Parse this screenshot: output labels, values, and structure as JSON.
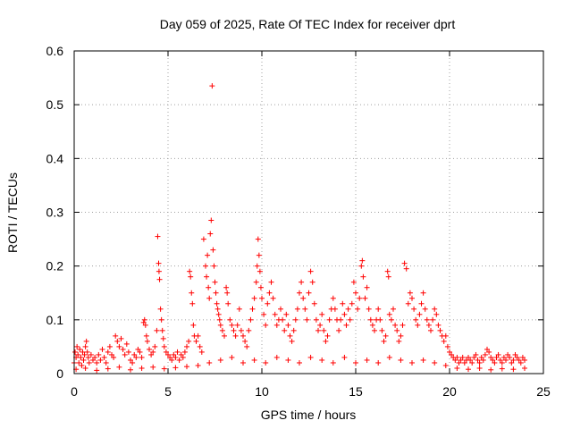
{
  "chart_data": {
    "type": "scatter",
    "title": "Day 059 of 2025, Rate Of TEC Index for receiver dprt",
    "xlabel": "GPS time / hours",
    "ylabel": "ROTI / TECUs",
    "xlim": [
      0,
      25
    ],
    "ylim": [
      0,
      0.6
    ],
    "xticks": [
      "0",
      "5",
      "10",
      "15",
      "20",
      "25"
    ],
    "yticks": [
      "0",
      "0.1",
      "0.2",
      "0.3",
      "0.4",
      "0.5",
      "0.6"
    ],
    "grid": true,
    "marker": "+",
    "color": "#ff0000",
    "series": [
      {
        "points": [
          [
            0.0,
            0.02
          ],
          [
            0.05,
            0.04
          ],
          [
            0.1,
            0.03
          ],
          [
            0.15,
            0.05
          ],
          [
            0.2,
            0.035
          ],
          [
            0.25,
            0.02
          ],
          [
            0.3,
            0.045
          ],
          [
            0.35,
            0.03
          ],
          [
            0.4,
            0.015
          ],
          [
            0.45,
            0.04
          ],
          [
            0.5,
            0.025
          ],
          [
            0.55,
            0.035
          ],
          [
            0.6,
            0.05
          ],
          [
            0.65,
            0.06
          ],
          [
            0.7,
            0.04
          ],
          [
            0.75,
            0.03
          ],
          [
            0.8,
            0.02
          ],
          [
            0.9,
            0.035
          ],
          [
            1.0,
            0.025
          ],
          [
            1.1,
            0.03
          ],
          [
            1.2,
            0.02
          ],
          [
            1.3,
            0.035
          ],
          [
            1.4,
            0.025
          ],
          [
            1.5,
            0.045
          ],
          [
            1.6,
            0.03
          ],
          [
            1.7,
            0.02
          ],
          [
            1.8,
            0.04
          ],
          [
            1.9,
            0.05
          ],
          [
            2.0,
            0.035
          ],
          [
            2.1,
            0.03
          ],
          [
            2.2,
            0.07
          ],
          [
            2.3,
            0.06
          ],
          [
            2.4,
            0.05
          ],
          [
            2.5,
            0.065
          ],
          [
            2.6,
            0.045
          ],
          [
            2.7,
            0.035
          ],
          [
            2.8,
            0.055
          ],
          [
            2.9,
            0.04
          ],
          [
            3.0,
            0.025
          ],
          [
            3.1,
            0.02
          ],
          [
            3.2,
            0.035
          ],
          [
            3.3,
            0.03
          ],
          [
            3.4,
            0.045
          ],
          [
            3.5,
            0.04
          ],
          [
            3.6,
            0.03
          ],
          [
            3.7,
            0.095
          ],
          [
            3.75,
            0.1
          ],
          [
            3.8,
            0.09
          ],
          [
            3.85,
            0.07
          ],
          [
            3.9,
            0.06
          ],
          [
            4.0,
            0.045
          ],
          [
            4.1,
            0.035
          ],
          [
            4.2,
            0.04
          ],
          [
            4.3,
            0.05
          ],
          [
            4.4,
            0.08
          ],
          [
            4.45,
            0.255
          ],
          [
            4.5,
            0.205
          ],
          [
            4.52,
            0.19
          ],
          [
            4.55,
            0.175
          ],
          [
            4.6,
            0.12
          ],
          [
            4.65,
            0.1
          ],
          [
            4.7,
            0.08
          ],
          [
            4.75,
            0.065
          ],
          [
            4.8,
            0.05
          ],
          [
            4.9,
            0.04
          ],
          [
            5.0,
            0.035
          ],
          [
            5.1,
            0.03
          ],
          [
            5.2,
            0.025
          ],
          [
            5.3,
            0.035
          ],
          [
            5.4,
            0.03
          ],
          [
            5.5,
            0.04
          ],
          [
            5.6,
            0.025
          ],
          [
            5.7,
            0.035
          ],
          [
            5.8,
            0.03
          ],
          [
            5.9,
            0.04
          ],
          [
            6.0,
            0.05
          ],
          [
            6.1,
            0.06
          ],
          [
            6.15,
            0.19
          ],
          [
            6.2,
            0.18
          ],
          [
            6.25,
            0.15
          ],
          [
            6.3,
            0.13
          ],
          [
            6.35,
            0.09
          ],
          [
            6.4,
            0.07
          ],
          [
            6.5,
            0.06
          ],
          [
            6.6,
            0.07
          ],
          [
            6.7,
            0.05
          ],
          [
            6.8,
            0.04
          ],
          [
            6.9,
            0.25
          ],
          [
            7.0,
            0.2
          ],
          [
            7.05,
            0.18
          ],
          [
            7.1,
            0.22
          ],
          [
            7.15,
            0.16
          ],
          [
            7.2,
            0.14
          ],
          [
            7.25,
            0.26
          ],
          [
            7.3,
            0.285
          ],
          [
            7.35,
            0.535
          ],
          [
            7.4,
            0.23
          ],
          [
            7.45,
            0.2
          ],
          [
            7.5,
            0.17
          ],
          [
            7.55,
            0.15
          ],
          [
            7.6,
            0.13
          ],
          [
            7.65,
            0.12
          ],
          [
            7.7,
            0.11
          ],
          [
            7.75,
            0.1
          ],
          [
            7.8,
            0.09
          ],
          [
            7.9,
            0.08
          ],
          [
            8.0,
            0.07
          ],
          [
            8.1,
            0.16
          ],
          [
            8.15,
            0.15
          ],
          [
            8.2,
            0.13
          ],
          [
            8.3,
            0.1
          ],
          [
            8.4,
            0.09
          ],
          [
            8.5,
            0.08
          ],
          [
            8.6,
            0.07
          ],
          [
            8.7,
            0.09
          ],
          [
            8.8,
            0.12
          ],
          [
            8.9,
            0.08
          ],
          [
            9.0,
            0.07
          ],
          [
            9.1,
            0.06
          ],
          [
            9.2,
            0.05
          ],
          [
            9.3,
            0.08
          ],
          [
            9.4,
            0.1
          ],
          [
            9.5,
            0.12
          ],
          [
            9.6,
            0.14
          ],
          [
            9.7,
            0.17
          ],
          [
            9.75,
            0.2
          ],
          [
            9.8,
            0.25
          ],
          [
            9.85,
            0.22
          ],
          [
            9.9,
            0.19
          ],
          [
            9.95,
            0.16
          ],
          [
            10.0,
            0.14
          ],
          [
            10.1,
            0.11
          ],
          [
            10.2,
            0.09
          ],
          [
            10.3,
            0.13
          ],
          [
            10.4,
            0.15
          ],
          [
            10.5,
            0.17
          ],
          [
            10.6,
            0.14
          ],
          [
            10.7,
            0.11
          ],
          [
            10.8,
            0.09
          ],
          [
            10.9,
            0.1
          ],
          [
            11.0,
            0.12
          ],
          [
            11.1,
            0.1
          ],
          [
            11.2,
            0.08
          ],
          [
            11.3,
            0.11
          ],
          [
            11.4,
            0.09
          ],
          [
            11.5,
            0.07
          ],
          [
            11.6,
            0.06
          ],
          [
            11.7,
            0.08
          ],
          [
            11.8,
            0.1
          ],
          [
            11.9,
            0.12
          ],
          [
            12.0,
            0.15
          ],
          [
            12.1,
            0.17
          ],
          [
            12.2,
            0.14
          ],
          [
            12.3,
            0.12
          ],
          [
            12.4,
            0.1
          ],
          [
            12.5,
            0.15
          ],
          [
            12.6,
            0.19
          ],
          [
            12.7,
            0.17
          ],
          [
            12.8,
            0.13
          ],
          [
            12.9,
            0.1
          ],
          [
            13.0,
            0.08
          ],
          [
            13.1,
            0.09
          ],
          [
            13.2,
            0.11
          ],
          [
            13.3,
            0.08
          ],
          [
            13.4,
            0.06
          ],
          [
            13.5,
            0.07
          ],
          [
            13.6,
            0.1
          ],
          [
            13.7,
            0.12
          ],
          [
            13.8,
            0.14
          ],
          [
            13.9,
            0.12
          ],
          [
            14.0,
            0.1
          ],
          [
            14.1,
            0.08
          ],
          [
            14.2,
            0.1
          ],
          [
            14.3,
            0.13
          ],
          [
            14.4,
            0.11
          ],
          [
            14.5,
            0.09
          ],
          [
            14.6,
            0.12
          ],
          [
            14.7,
            0.1
          ],
          [
            14.8,
            0.13
          ],
          [
            14.9,
            0.17
          ],
          [
            15.0,
            0.15
          ],
          [
            15.1,
            0.12
          ],
          [
            15.2,
            0.14
          ],
          [
            15.3,
            0.2
          ],
          [
            15.35,
            0.21
          ],
          [
            15.4,
            0.18
          ],
          [
            15.5,
            0.14
          ],
          [
            15.6,
            0.16
          ],
          [
            15.7,
            0.12
          ],
          [
            15.8,
            0.1
          ],
          [
            15.9,
            0.09
          ],
          [
            16.0,
            0.08
          ],
          [
            16.1,
            0.1
          ],
          [
            16.2,
            0.12
          ],
          [
            16.3,
            0.1
          ],
          [
            16.4,
            0.08
          ],
          [
            16.5,
            0.06
          ],
          [
            16.6,
            0.07
          ],
          [
            16.7,
            0.19
          ],
          [
            16.75,
            0.18
          ],
          [
            16.8,
            0.11
          ],
          [
            16.9,
            0.1
          ],
          [
            17.0,
            0.12
          ],
          [
            17.1,
            0.09
          ],
          [
            17.2,
            0.08
          ],
          [
            17.3,
            0.06
          ],
          [
            17.4,
            0.07
          ],
          [
            17.5,
            0.09
          ],
          [
            17.6,
            0.205
          ],
          [
            17.7,
            0.195
          ],
          [
            17.8,
            0.13
          ],
          [
            17.9,
            0.15
          ],
          [
            18.0,
            0.14
          ],
          [
            18.1,
            0.12
          ],
          [
            18.2,
            0.1
          ],
          [
            18.3,
            0.09
          ],
          [
            18.4,
            0.11
          ],
          [
            18.5,
            0.13
          ],
          [
            18.6,
            0.15
          ],
          [
            18.7,
            0.12
          ],
          [
            18.8,
            0.1
          ],
          [
            18.9,
            0.09
          ],
          [
            19.0,
            0.08
          ],
          [
            19.1,
            0.1
          ],
          [
            19.2,
            0.12
          ],
          [
            19.3,
            0.11
          ],
          [
            19.4,
            0.09
          ],
          [
            19.5,
            0.08
          ],
          [
            19.6,
            0.07
          ],
          [
            19.7,
            0.06
          ],
          [
            19.8,
            0.07
          ],
          [
            19.9,
            0.05
          ],
          [
            20.0,
            0.04
          ],
          [
            20.1,
            0.035
          ],
          [
            20.2,
            0.03
          ],
          [
            20.3,
            0.025
          ],
          [
            20.4,
            0.03
          ],
          [
            20.5,
            0.02
          ],
          [
            20.6,
            0.025
          ],
          [
            20.7,
            0.03
          ],
          [
            20.8,
            0.02
          ],
          [
            20.9,
            0.025
          ],
          [
            21.0,
            0.03
          ],
          [
            21.1,
            0.025
          ],
          [
            21.2,
            0.02
          ],
          [
            21.3,
            0.03
          ],
          [
            21.4,
            0.035
          ],
          [
            21.5,
            0.025
          ],
          [
            21.6,
            0.02
          ],
          [
            21.7,
            0.03
          ],
          [
            21.8,
            0.025
          ],
          [
            21.9,
            0.035
          ],
          [
            22.0,
            0.045
          ],
          [
            22.1,
            0.04
          ],
          [
            22.2,
            0.03
          ],
          [
            22.3,
            0.025
          ],
          [
            22.4,
            0.02
          ],
          [
            22.5,
            0.03
          ],
          [
            22.6,
            0.035
          ],
          [
            22.7,
            0.025
          ],
          [
            22.8,
            0.02
          ],
          [
            22.9,
            0.03
          ],
          [
            23.0,
            0.025
          ],
          [
            23.1,
            0.035
          ],
          [
            23.2,
            0.03
          ],
          [
            23.3,
            0.02
          ],
          [
            23.4,
            0.025
          ],
          [
            23.5,
            0.035
          ],
          [
            23.6,
            0.03
          ],
          [
            23.7,
            0.025
          ],
          [
            23.8,
            0.02
          ],
          [
            23.9,
            0.03
          ],
          [
            24.0,
            0.025
          ],
          [
            0.1,
            0.008
          ],
          [
            0.6,
            0.01
          ],
          [
            1.2,
            0.006
          ],
          [
            1.8,
            0.009
          ],
          [
            2.4,
            0.012
          ],
          [
            3.0,
            0.007
          ],
          [
            3.6,
            0.01
          ],
          [
            4.2,
            0.012
          ],
          [
            4.8,
            0.009
          ],
          [
            5.4,
            0.011
          ],
          [
            6.0,
            0.013
          ],
          [
            6.6,
            0.015
          ],
          [
            7.2,
            0.02
          ],
          [
            7.8,
            0.025
          ],
          [
            8.4,
            0.03
          ],
          [
            9.0,
            0.02
          ],
          [
            9.6,
            0.025
          ],
          [
            10.2,
            0.02
          ],
          [
            10.8,
            0.03
          ],
          [
            11.4,
            0.025
          ],
          [
            12.0,
            0.02
          ],
          [
            12.6,
            0.03
          ],
          [
            13.2,
            0.025
          ],
          [
            13.8,
            0.02
          ],
          [
            14.4,
            0.03
          ],
          [
            15.0,
            0.02
          ],
          [
            15.6,
            0.025
          ],
          [
            16.2,
            0.02
          ],
          [
            16.8,
            0.03
          ],
          [
            17.4,
            0.025
          ],
          [
            18.0,
            0.02
          ],
          [
            18.6,
            0.025
          ],
          [
            19.2,
            0.02
          ],
          [
            19.8,
            0.015
          ],
          [
            20.4,
            0.01
          ],
          [
            21.0,
            0.008
          ],
          [
            21.6,
            0.01
          ],
          [
            22.2,
            0.007
          ],
          [
            22.8,
            0.009
          ],
          [
            23.4,
            0.008
          ],
          [
            24.0,
            0.01
          ]
        ]
      }
    ]
  }
}
